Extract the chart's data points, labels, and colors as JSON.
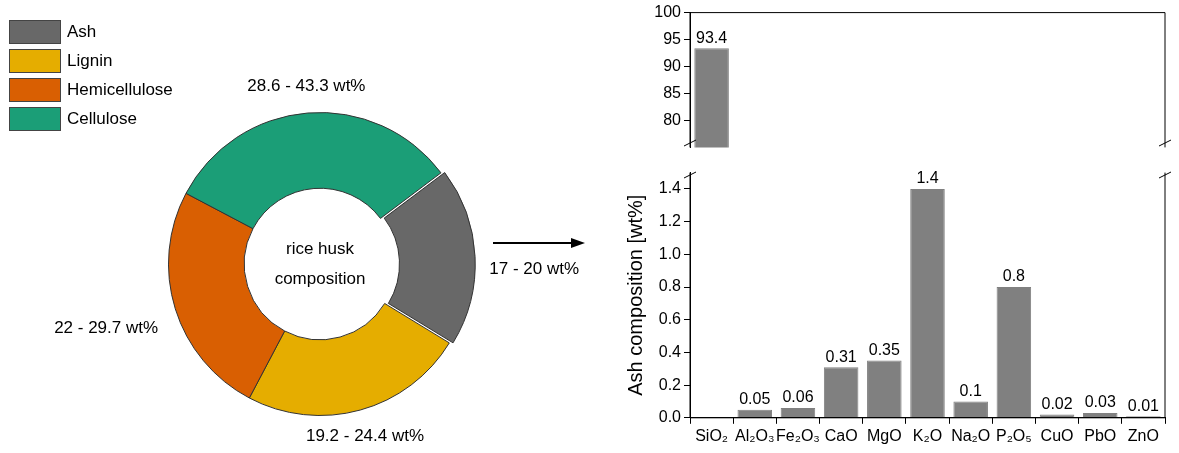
{
  "chart_data": [
    {
      "type": "donut",
      "title": "rice husk composition",
      "categories": [
        "Ash",
        "Lignin",
        "Hemicellulose",
        "Cellulose"
      ],
      "values": [
        19,
        24,
        25,
        32
      ],
      "colors": [
        "#686868",
        "#e5ad00",
        "#d95f02",
        "#1b9e77"
      ],
      "annotations": [
        "17 - 20 wt%",
        "19.2 - 24.4 wt%",
        "22 - 29.7 wt%",
        "28.6 - 43.3 wt%"
      ],
      "legend": "top left"
    },
    {
      "type": "bar",
      "values": [
        93.4,
        null,
        null,
        null,
        null,
        null,
        null,
        null,
        null,
        null,
        null
      ],
      "color": "#808080",
      "ylim": [
        75,
        100
      ],
      "yticks": [
        80,
        85,
        90,
        95,
        100
      ],
      "tick_labels": "y",
      "data_labels": true
    },
    {
      "type": "bar",
      "ylabel": "Ash composition [wt%]",
      "categories": [
        "SiO₂",
        "Al₂O₃",
        "Fe₂O₃",
        "CaO",
        "MgO",
        "K₂O",
        "Na₂O",
        "P₂O₅",
        "CuO",
        "PbO",
        "ZnO"
      ],
      "values": [
        null,
        0.05,
        0.06,
        0.31,
        0.35,
        1.4,
        0.1,
        0.8,
        0.02,
        0.03,
        0.01
      ],
      "value_labels": [
        null,
        "0.05",
        "0.06",
        "0.31",
        "0.35",
        "1.4",
        "0.1",
        "0.8",
        "0.02",
        "0.03",
        "0.01"
      ],
      "color": "#808080",
      "ylim": [
        0,
        1.5
      ],
      "yticks": [
        {
          "value": 0,
          "label": "0.0"
        },
        {
          "value": 0.2,
          "label": "0.2"
        },
        {
          "value": 0.4,
          "label": "0.4"
        },
        {
          "value": 0.6,
          "label": "0.6"
        },
        {
          "value": 0.8,
          "label": "0.8"
        },
        {
          "value": 1,
          "label": "1.0"
        },
        {
          "value": 1.2,
          "label": "1.2"
        },
        {
          "value": 1.4,
          "label": "1.4"
        }
      ]
    }
  ]
}
